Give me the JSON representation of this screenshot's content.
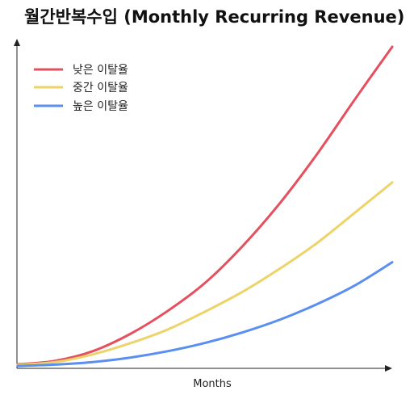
{
  "chart_data": {
    "type": "line",
    "title": "월간반복수입 (Monthly Recurring Revenue)",
    "xlabel": "Months",
    "ylabel": "",
    "x_ticks_shown": false,
    "y_ticks_shown": false,
    "grid": false,
    "legend_position": "top-left",
    "xlim": [
      0,
      100
    ],
    "ylim": [
      0,
      100
    ],
    "series": [
      {
        "name": "낮은 이탈율",
        "color": "#e5505e",
        "x": [
          0,
          10,
          20,
          30,
          40,
          50,
          60,
          70,
          80,
          90,
          100
        ],
        "values": [
          0.5,
          1.6,
          4.6,
          10,
          17.2,
          26,
          37.5,
          51,
          66.5,
          83.5,
          100
        ]
      },
      {
        "name": "중간 이탈율",
        "color": "#ecd46a",
        "x": [
          0,
          10,
          20,
          30,
          40,
          50,
          60,
          70,
          80,
          90,
          100
        ],
        "values": [
          0.3,
          1.2,
          3.6,
          7.1,
          11.4,
          17,
          23.2,
          30.5,
          38.6,
          48,
          57.5
        ]
      },
      {
        "name": "높은 이탈율",
        "color": "#5a8ef0",
        "x": [
          0,
          10,
          20,
          30,
          40,
          50,
          60,
          70,
          80,
          90,
          100
        ],
        "values": [
          0,
          0.4,
          1.2,
          2.6,
          4.6,
          7.2,
          10.5,
          14.5,
          19.4,
          25.2,
          32.5
        ]
      }
    ]
  }
}
